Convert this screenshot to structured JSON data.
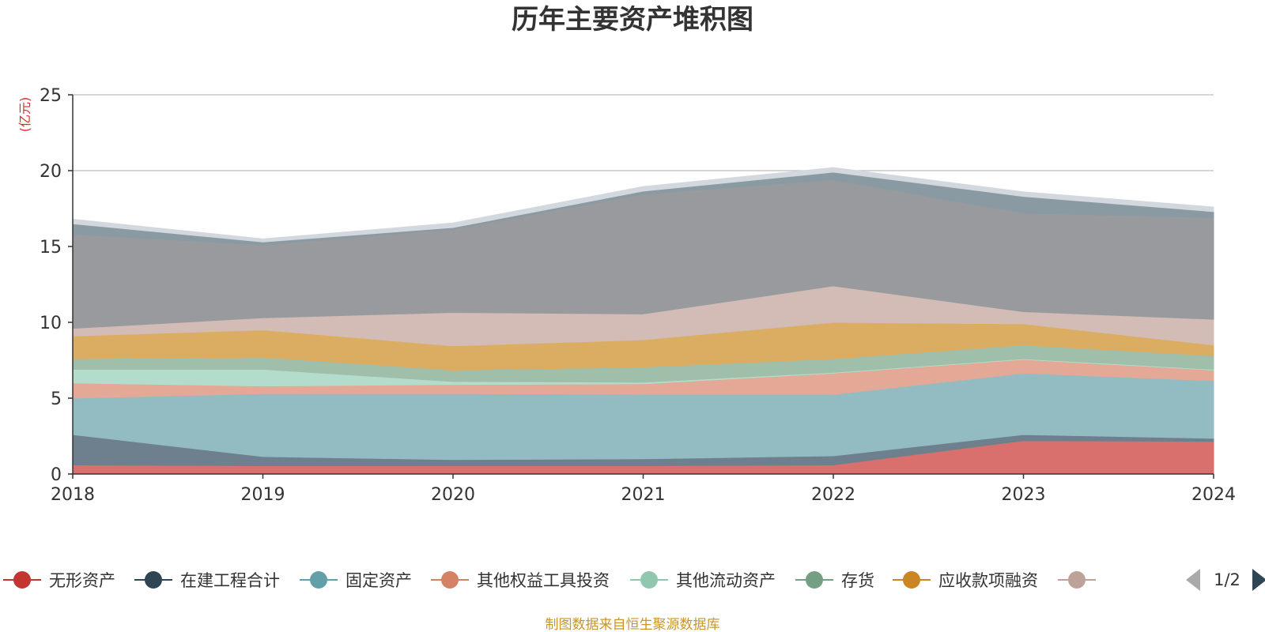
{
  "chart_data": {
    "type": "area",
    "stacked": true,
    "title": "历年主要资产堆积图",
    "unit_label": "(亿元)",
    "source": "制图数据来自恒生聚源数据库",
    "x": [
      "2018",
      "2019",
      "2020",
      "2021",
      "2022",
      "2023",
      "2024"
    ],
    "ylim": [
      0,
      25
    ],
    "yticks": [
      0,
      5,
      10,
      15,
      20,
      25
    ],
    "grid": true,
    "legend_position": "bottom",
    "legend_page": "1/2",
    "series": [
      {
        "name": "无形资产",
        "color": "#d9706e",
        "legend_color": "#c23531",
        "values": [
          0.6,
          0.55,
          0.55,
          0.55,
          0.6,
          2.2,
          2.15
        ]
      },
      {
        "name": "在建工程合计",
        "color": "#6e7f8d",
        "legend_color": "#2f4554",
        "values": [
          2.0,
          0.6,
          0.4,
          0.45,
          0.6,
          0.4,
          0.2
        ]
      },
      {
        "name": "固定资产",
        "color": "#93bcc2",
        "legend_color": "#61a0a8",
        "values": [
          2.4,
          4.15,
          4.35,
          4.25,
          4.05,
          4.05,
          3.8
        ]
      },
      {
        "name": "其他权益工具投资",
        "color": "#e3a896",
        "legend_color": "#d48265",
        "values": [
          1.0,
          0.5,
          0.6,
          0.7,
          1.4,
          0.9,
          0.7
        ]
      },
      {
        "name": "其他流动资产",
        "color": "#b4dccc",
        "legend_color": "#91c7ae",
        "values": [
          0.9,
          1.1,
          0.2,
          0.1,
          0.05,
          0.05,
          0.05
        ]
      },
      {
        "name": "存货",
        "color": "#9fbfab",
        "legend_color": "#749f83",
        "values": [
          0.7,
          0.8,
          0.75,
          1.0,
          0.9,
          0.9,
          0.9
        ]
      },
      {
        "name": "应收款项融资",
        "color": "#dbad62",
        "legend_color": "#ca8622",
        "values": [
          1.5,
          1.8,
          1.6,
          1.8,
          2.4,
          1.4,
          0.7
        ]
      },
      {
        "values": [
          0.5,
          0.8,
          2.2,
          1.7,
          2.4,
          0.8,
          1.7
        ],
        "color": "#d2bcb5",
        "legend_color": "#bda29a"
      },
      {
        "values": [
          6.2,
          4.8,
          5.5,
          7.9,
          7.0,
          6.5,
          6.7
        ],
        "color": "#999a9e"
      },
      {
        "values": [
          0.7,
          0.2,
          0.1,
          0.2,
          0.5,
          1.1,
          0.4
        ],
        "color": "#8a9aa3"
      },
      {
        "values": [
          0.3,
          0.2,
          0.3,
          0.3,
          0.3,
          0.3,
          0.3
        ],
        "color": "#d3d8de"
      }
    ]
  }
}
